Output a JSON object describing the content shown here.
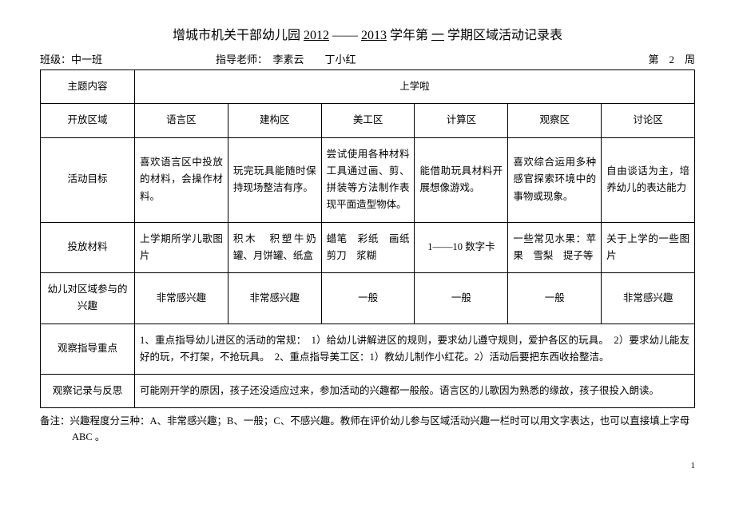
{
  "title_prefix": "增城市机关干部幼儿园",
  "title_year1": "2012",
  "title_dash": "——",
  "title_year2": "2013",
  "title_mid": "学年第",
  "title_sem": "一",
  "title_suffix": "学期区域活动记录表",
  "meta": {
    "class_label": "班级：中一班",
    "teacher_label": "指导老师：　李素云　　丁小红",
    "week_label": "第　2　周"
  },
  "labels": {
    "theme": "主题内容",
    "open_zone": "开放区域",
    "goal": "活动目标",
    "materials": "投放材料",
    "interest": "幼儿对区域参与的兴趣",
    "focus": "观察指导重点",
    "record": "观察记录与反思"
  },
  "theme_value": "上学啦",
  "zones": {
    "z1": "语言区",
    "z2": "建构区",
    "z3": "美工区",
    "z4": "计算区",
    "z5": "观察区",
    "z6": "讨论区"
  },
  "goals": {
    "g1": "喜欢语言区中投放的材料，会操作材料。",
    "g2": "玩完玩具能随时保持现场整洁有序。",
    "g3": "尝试使用各种材料工具通过画、剪、拼装等方法制作表现平面造型物体。",
    "g4": "能借助玩具材料开展想像游戏。",
    "g5": "喜欢综合运用多种感官探索环境中的事物或现象。",
    "g6": "自由谈话为主，培养幼儿的表达能力"
  },
  "materials": {
    "m1": "上学期所学儿歌图片",
    "m2": "积木　积塑牛奶罐、月饼罐、纸盒",
    "m3": "蜡笔　彩纸　画纸剪刀　浆糊",
    "m4": "1——10 数字卡",
    "m5": "一些常见水果：苹果　雪梨　提子等",
    "m6": "关于上学的一些图片"
  },
  "interest": {
    "i1": "非常感兴趣",
    "i2": "非常感兴趣",
    "i3": "一般",
    "i4": "一般",
    "i5": "一般",
    "i6": "非常感兴趣"
  },
  "focus_value": "1、重点指导幼儿进区的活动的常规：　1）给幼儿讲解进区的规则，要求幼儿遵守规则，爱护各区的玩具。　2）要求幼儿能友好的玩，不打架，不抢玩具。　2、重点指导美工区：1）教幼儿制作小红花。2）活动后要把东西收拾整洁。",
  "record_value": "可能刚开学的原因，孩子还没适应过来，参加活动的兴趣都一般般。语言区的儿歌因为熟悉的缘故，孩子很投入朗读。",
  "footnote": "备注：兴趣程度分三种：A、非常感兴趣；B、一般；C、不感兴趣。教师在评价幼儿参与区域活动兴趣一栏时可以用文字表达，也可以直接填上字母 ABC 。",
  "pagenum": "1"
}
